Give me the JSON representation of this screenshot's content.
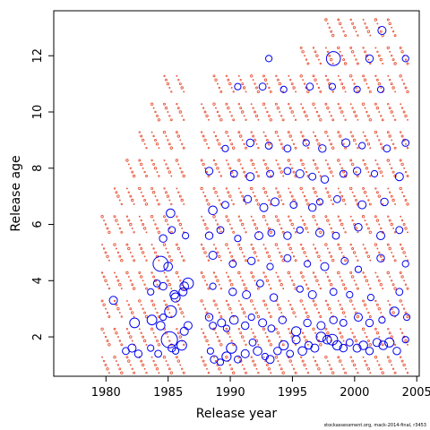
{
  "chart_data": {
    "type": "scatter",
    "title": "",
    "xlabel": "Release year",
    "ylabel": "Release age",
    "xlim": [
      1975.8,
      2005.2
    ],
    "ylim": [
      0.6,
      13.6
    ],
    "xticks": [
      1980,
      1985,
      1990,
      1995,
      2000,
      2005
    ],
    "yticks": [
      2,
      4,
      6,
      8,
      10,
      12
    ],
    "grid": false,
    "legend": "none",
    "series": [
      {
        "marker": "open-circle",
        "color": "#0000ee",
        "x": [
          1980.6,
          1981.6,
          1982.1,
          1982.3,
          1982.6,
          1983.6,
          1983.7,
          1984.2,
          1984.4,
          1984.6,
          1985.1,
          1985.3,
          1985.6,
          1986.1,
          1986.3,
          1986.6,
          1985.2,
          1985.6,
          1986.2,
          1984.4,
          1985.0,
          1983.6,
          1984.1,
          1984.6,
          1985.5,
          1986.6,
          1986.3,
          1984.6,
          1985.3,
          1986.4,
          1985.2,
          1988.4,
          1988.7,
          1989.2,
          1989.7,
          1990.1,
          1990.6,
          1991.2,
          1991.8,
          1992.2,
          1992.8,
          1993.2,
          1993.8,
          1994.3,
          1994.8,
          1995.3,
          1995.8,
          1996.3,
          1996.8,
          1997.3,
          1997.8,
          1998.2,
          1998.6,
          1999.1,
          1999.6,
          2000.2,
          2000.7,
          2001.2,
          2001.8,
          2002.3,
          2002.8,
          2003.4,
          2004.1,
          1988.3,
          1988.6,
          1989.3,
          1989.7,
          1990.3,
          1991.2,
          1991.7,
          1992.6,
          1993.3,
          1994.2,
          1995.3,
          1996.2,
          1997.3,
          1998.3,
          1999.1,
          2000.3,
          2001.2,
          2002.2,
          2003.2,
          2004.2,
          1988.6,
          1990.2,
          1991.3,
          1992.4,
          1993.5,
          1995.6,
          1996.6,
          1998.3,
          1999.6,
          2001.3,
          2003.6,
          1988.6,
          1990.2,
          1991.7,
          1993.2,
          1994.6,
          1996.2,
          1997.6,
          1999.2,
          2000.3,
          2002.1,
          2004.1,
          1988.3,
          1989.2,
          1990.6,
          1992.3,
          1993.3,
          1994.6,
          1995.6,
          1997.2,
          1998.5,
          2000.3,
          2002.1,
          2003.6,
          1988.6,
          1989.6,
          1991.4,
          1992.7,
          1993.6,
          1995.1,
          1996.6,
          1997.2,
          1998.6,
          2000.6,
          2002.4,
          1988.3,
          1990.3,
          1991.6,
          1993.2,
          1994.6,
          1995.6,
          1996.6,
          1997.6,
          1999.1,
          2000.2,
          2001.6,
          2003.6,
          1989.6,
          1991.6,
          1993.1,
          1994.6,
          1996.1,
          1997.4,
          1999.3,
          2000.6,
          2002.6,
          2004.1,
          1990.6,
          1992.6,
          1994.3,
          1996.4,
          1998.2,
          2000.2,
          2002.1,
          1993.1,
          1998.3,
          2001.2,
          2004.1,
          2002.2
        ],
        "y": [
          3.3,
          1.5,
          1.6,
          2.5,
          1.4,
          1.6,
          2.6,
          1.4,
          2.4,
          2.7,
          1.9,
          1.6,
          1.5,
          1.7,
          2.2,
          2.4,
          2.9,
          3.4,
          3.6,
          4.6,
          4.5,
          3.6,
          3.9,
          3.8,
          3.5,
          3.9,
          3.8,
          5.5,
          5.8,
          5.6,
          6.4,
          1.5,
          1.2,
          1.1,
          1.3,
          1.6,
          1.2,
          1.4,
          1.8,
          1.5,
          1.3,
          1.2,
          1.5,
          1.7,
          1.4,
          1.9,
          1.5,
          1.7,
          1.6,
          2.0,
          1.9,
          1.9,
          1.7,
          1.6,
          1.8,
          1.6,
          1.7,
          1.5,
          1.8,
          1.7,
          1.8,
          1.5,
          1.9,
          2.7,
          2.4,
          2.5,
          2.3,
          2.6,
          2.4,
          2.7,
          2.5,
          2.3,
          2.6,
          2.2,
          2.5,
          2.4,
          2.6,
          2.5,
          2.7,
          2.5,
          2.6,
          2.9,
          2.7,
          3.8,
          3.6,
          3.5,
          3.9,
          3.4,
          3.7,
          3.5,
          3.6,
          3.5,
          3.4,
          3.6,
          4.9,
          4.6,
          4.7,
          4.5,
          4.8,
          4.6,
          4.5,
          4.7,
          4.4,
          4.8,
          4.6,
          5.6,
          5.8,
          5.5,
          5.6,
          5.7,
          5.6,
          5.8,
          5.7,
          5.6,
          5.9,
          5.6,
          5.8,
          6.5,
          6.7,
          6.9,
          6.6,
          6.8,
          6.7,
          6.6,
          6.8,
          6.9,
          6.7,
          6.8,
          7.9,
          7.8,
          7.7,
          7.8,
          7.9,
          7.8,
          7.7,
          7.6,
          7.8,
          7.9,
          7.8,
          7.7,
          8.7,
          8.9,
          8.8,
          8.7,
          8.9,
          8.7,
          8.9,
          8.8,
          8.7,
          8.9,
          10.9,
          10.9,
          10.8,
          10.9,
          10.9,
          10.8,
          10.8,
          11.9,
          11.9,
          11.9,
          11.9,
          12.9
        ],
        "s": [
          1.5,
          1.3,
          1.5,
          1.8,
          1.4,
          1.2,
          1.8,
          1.3,
          1.6,
          1.2,
          3.0,
          1.4,
          1.2,
          1.8,
          1.5,
          1.5,
          2.2,
          1.7,
          1.5,
          2.8,
          1.6,
          1.2,
          1.3,
          1.4,
          1.6,
          2.0,
          1.6,
          1.4,
          1.3,
          1.2,
          1.6,
          1.2,
          1.4,
          1.2,
          1.7,
          1.9,
          1.3,
          1.5,
          1.3,
          1.6,
          1.2,
          1.5,
          1.4,
          1.7,
          1.3,
          1.5,
          1.6,
          1.4,
          1.5,
          1.8,
          1.6,
          2.0,
          1.7,
          1.4,
          1.3,
          1.5,
          1.6,
          1.4,
          1.5,
          1.6,
          1.7,
          1.4,
          1.2,
          1.4,
          1.3,
          1.5,
          1.2,
          1.6,
          1.4,
          1.2,
          1.5,
          1.3,
          1.4,
          1.7,
          1.4,
          1.5,
          1.4,
          1.3,
          1.5,
          1.4,
          1.2,
          1.7,
          1.2,
          1.2,
          1.4,
          1.5,
          1.3,
          1.4,
          1.2,
          1.5,
          1.3,
          1.2,
          1.2,
          1.3,
          1.5,
          1.3,
          1.4,
          1.2,
          1.3,
          1.2,
          1.5,
          1.3,
          1.2,
          1.4,
          1.2,
          1.4,
          1.3,
          1.2,
          1.5,
          1.3,
          1.4,
          1.2,
          1.5,
          1.3,
          1.4,
          1.5,
          1.3,
          1.6,
          1.3,
          1.4,
          1.5,
          1.5,
          1.3,
          1.4,
          1.2,
          1.3,
          1.5,
          1.4,
          1.4,
          1.3,
          1.5,
          1.3,
          1.3,
          1.5,
          1.3,
          1.4,
          1.3,
          1.4,
          1.2,
          1.5,
          1.2,
          1.4,
          1.3,
          1.3,
          1.2,
          1.4,
          1.5,
          1.2,
          1.3,
          1.3,
          1.2,
          1.3,
          1.2,
          1.3,
          1.2,
          1.2,
          1.2,
          1.2,
          2.6,
          1.4,
          1.2,
          1.5,
          1.4
        ]
      },
      {
        "marker": "open-circle",
        "color": "#e8563a",
        "rows": [
          {
            "y": 1,
            "from": 1980,
            "to": 1986
          },
          {
            "y": 2,
            "from": 1980,
            "to": 1986
          },
          {
            "y": 3,
            "from": 1980,
            "to": 1986
          },
          {
            "y": 4,
            "from": 1980,
            "to": 1986
          },
          {
            "y": 5,
            "from": 1980,
            "to": 1986
          },
          {
            "y": 6,
            "from": 1980,
            "to": 1986
          },
          {
            "y": 7,
            "from": 1981,
            "to": 1986
          },
          {
            "y": 8,
            "from": 1982,
            "to": 1986
          },
          {
            "y": 9,
            "from": 1983,
            "to": 1986
          },
          {
            "y": 10,
            "from": 1984,
            "to": 1986
          },
          {
            "y": 11,
            "from": 1985,
            "to": 1986
          },
          {
            "y": 1,
            "from": 1988,
            "to": 2004
          },
          {
            "y": 2,
            "from": 1988,
            "to": 2004
          },
          {
            "y": 3,
            "from": 1988,
            "to": 2004
          },
          {
            "y": 4,
            "from": 1988,
            "to": 2004
          },
          {
            "y": 5,
            "from": 1988,
            "to": 2004
          },
          {
            "y": 6,
            "from": 1988,
            "to": 2004
          },
          {
            "y": 7,
            "from": 1988,
            "to": 2004
          },
          {
            "y": 8,
            "from": 1988,
            "to": 2004
          },
          {
            "y": 9,
            "from": 1988,
            "to": 2004
          },
          {
            "y": 10,
            "from": 1988,
            "to": 2004
          },
          {
            "y": 11,
            "from": 1989,
            "to": 2004
          },
          {
            "y": 12,
            "from": 1996,
            "to": 2004
          },
          {
            "y": 13,
            "from": 1998,
            "to": 2003
          }
        ]
      }
    ]
  },
  "footnote": "stockassessment.org, mack-2014-final, r3453"
}
